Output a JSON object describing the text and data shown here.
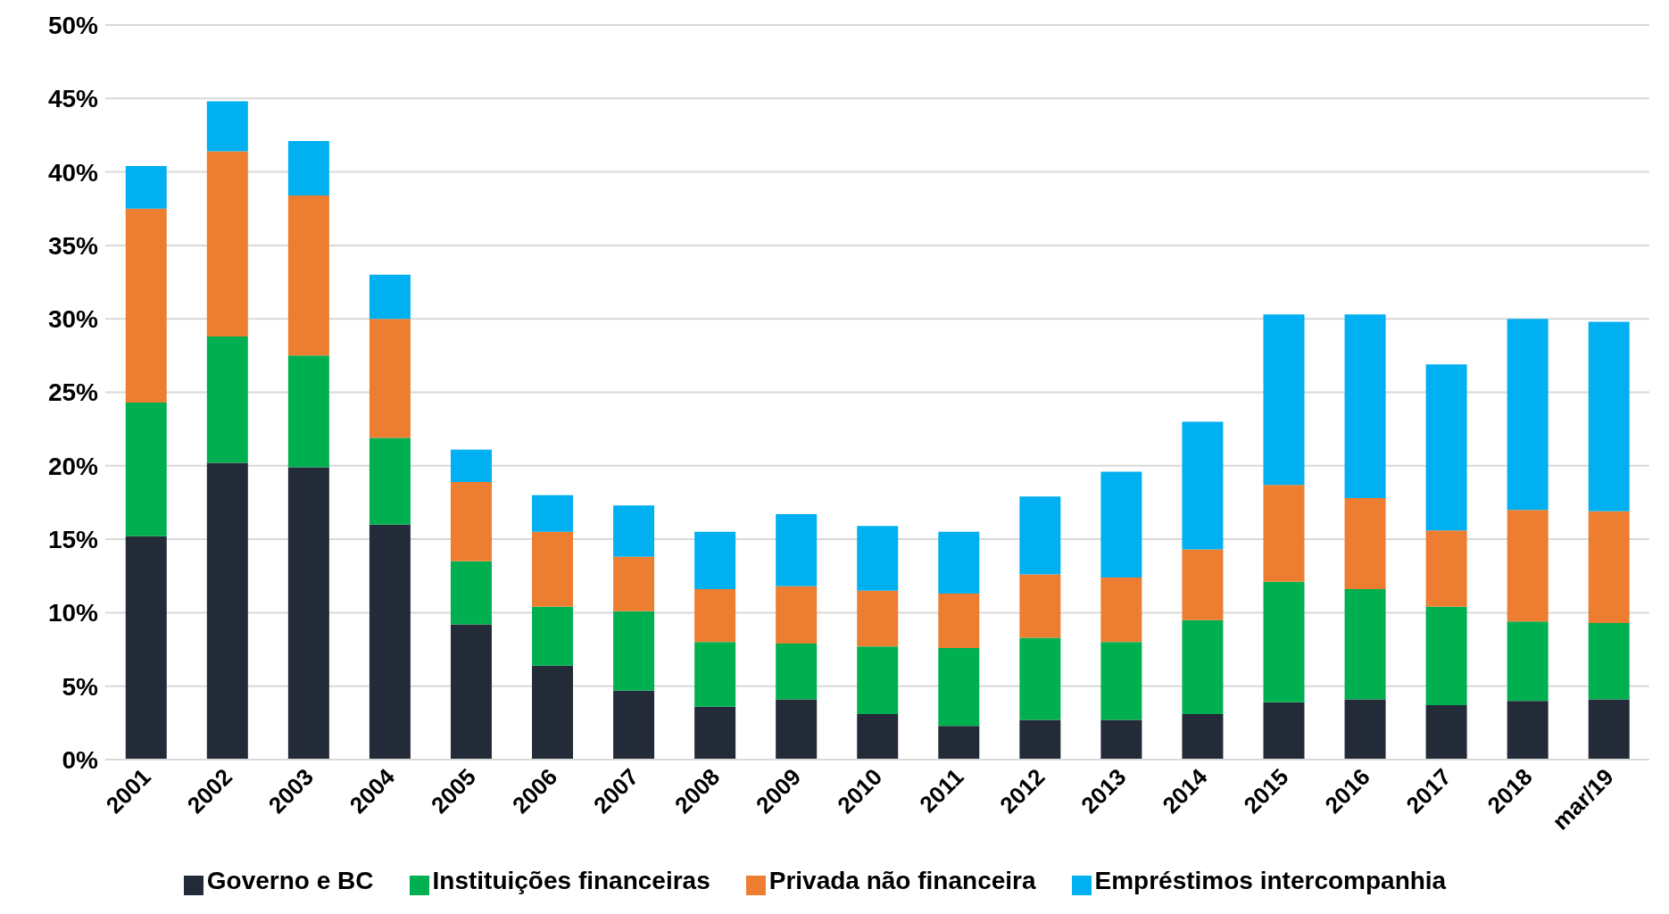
{
  "chart_data": {
    "type": "bar",
    "stacked": true,
    "categories": [
      "2001",
      "2002",
      "2003",
      "2004",
      "2005",
      "2006",
      "2007",
      "2008",
      "2009",
      "2010",
      "2011",
      "2012",
      "2013",
      "2014",
      "2015",
      "2016",
      "2017",
      "2018",
      "mar/19"
    ],
    "series": [
      {
        "name": "Governo e BC",
        "color": "#232b38",
        "values": [
          15.2,
          20.2,
          19.9,
          16.0,
          9.2,
          6.4,
          4.7,
          3.6,
          4.1,
          3.1,
          2.3,
          2.7,
          2.7,
          3.1,
          3.9,
          4.1,
          3.7,
          4.0,
          4.1
        ]
      },
      {
        "name": "Instituições financeiras",
        "color": "#00b050",
        "values": [
          9.1,
          8.6,
          7.6,
          5.9,
          4.3,
          4.0,
          5.4,
          4.4,
          3.8,
          4.6,
          5.3,
          5.6,
          5.3,
          6.4,
          8.2,
          7.5,
          6.7,
          5.4,
          5.2
        ]
      },
      {
        "name": "Privada não financeira",
        "color": "#ed7d31",
        "values": [
          13.2,
          12.6,
          10.9,
          8.1,
          5.4,
          5.1,
          3.7,
          3.6,
          3.9,
          3.8,
          3.7,
          4.3,
          4.4,
          4.8,
          6.6,
          6.2,
          5.2,
          7.6,
          7.6
        ]
      },
      {
        "name": "Empréstimos intercompanhia",
        "color": "#00b0f0",
        "values": [
          2.9,
          3.4,
          3.7,
          3.0,
          2.2,
          2.5,
          3.5,
          3.9,
          4.9,
          4.4,
          4.2,
          5.3,
          7.2,
          8.7,
          11.6,
          12.5,
          11.3,
          13.0,
          12.9
        ]
      }
    ],
    "ylim": [
      0,
      50
    ],
    "yticks": [
      {
        "value": 0,
        "label": "0%"
      },
      {
        "value": 5,
        "label": "5%"
      },
      {
        "value": 10,
        "label": "10%"
      },
      {
        "value": 15,
        "label": "15%"
      },
      {
        "value": 20,
        "label": "20%"
      },
      {
        "value": 25,
        "label": "25%"
      },
      {
        "value": 30,
        "label": "30%"
      },
      {
        "value": 35,
        "label": "35%"
      },
      {
        "value": 40,
        "label": "40%"
      },
      {
        "value": 45,
        "label": "45%"
      },
      {
        "value": 50,
        "label": "50%"
      }
    ],
    "grid": "y",
    "legend": "bottom"
  }
}
